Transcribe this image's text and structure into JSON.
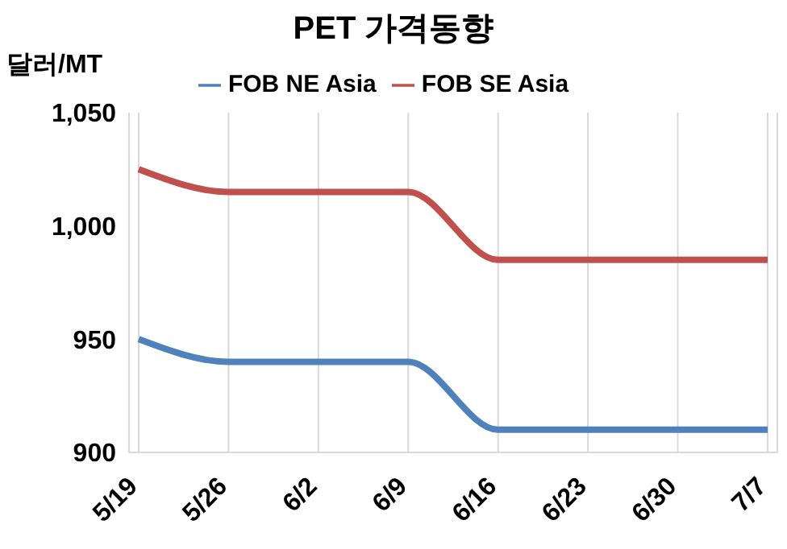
{
  "chart_data": {
    "type": "line",
    "title": "PET 가격동향",
    "ylabel": "달러/MT",
    "categories": [
      "5/19",
      "5/26",
      "6/2",
      "6/9",
      "6/16",
      "6/23",
      "6/30",
      "7/7"
    ],
    "series": [
      {
        "name": "FOB NE Asia",
        "color": "#4f81bd",
        "values": [
          950,
          940,
          940,
          940,
          910,
          910,
          910,
          910
        ]
      },
      {
        "name": "FOB SE Asia",
        "color": "#c0504d",
        "values": [
          1025,
          1015,
          1015,
          1015,
          985,
          985,
          985,
          985
        ]
      }
    ],
    "ylim": [
      900,
      1050
    ],
    "yticks": [
      900,
      950,
      {
        "value": 1000,
        "label": "1,000"
      },
      {
        "value": 1050,
        "label": "1,050"
      }
    ],
    "grid": "x",
    "legend": "top",
    "marker": "none",
    "line_style": "solid"
  }
}
